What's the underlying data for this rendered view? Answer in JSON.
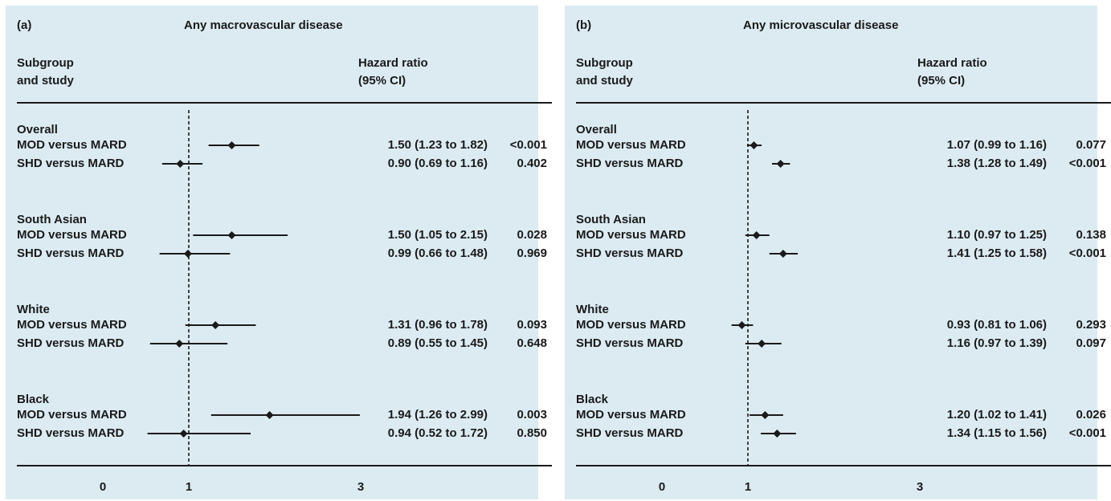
{
  "chart_data": [
    {
      "type": "forest",
      "panel_label": "(a)",
      "title": "Any macrovascular disease",
      "column_headers": {
        "subgroup": [
          "Subgroup",
          "and study"
        ],
        "hazard_ratio": [
          "Hazard ratio",
          "(95% CI)"
        ]
      },
      "x_ticks": [
        "0",
        "1",
        "3"
      ],
      "reference_line": 1,
      "groups": [
        {
          "name": "Overall",
          "rows": [
            {
              "label": "MOD versus MARD",
              "hr": 1.5,
              "lo": 1.23,
              "hi": 1.82,
              "ci_text": "1.50 (1.23 to 1.82)",
              "p": "<0.001"
            },
            {
              "label": "SHD versus MARD",
              "hr": 0.9,
              "lo": 0.69,
              "hi": 1.16,
              "ci_text": "0.90 (0.69 to 1.16)",
              "p": "0.402"
            }
          ]
        },
        {
          "name": "South Asian",
          "rows": [
            {
              "label": "MOD versus MARD",
              "hr": 1.5,
              "lo": 1.05,
              "hi": 2.15,
              "ci_text": "1.50 (1.05 to 2.15)",
              "p": "0.028"
            },
            {
              "label": "SHD versus MARD",
              "hr": 0.99,
              "lo": 0.66,
              "hi": 1.48,
              "ci_text": "0.99 (0.66 to 1.48)",
              "p": "0.969"
            }
          ]
        },
        {
          "name": "White",
          "rows": [
            {
              "label": "MOD versus MARD",
              "hr": 1.31,
              "lo": 0.96,
              "hi": 1.78,
              "ci_text": "1.31 (0.96 to 1.78)",
              "p": "0.093"
            },
            {
              "label": "SHD versus MARD",
              "hr": 0.89,
              "lo": 0.55,
              "hi": 1.45,
              "ci_text": "0.89 (0.55 to 1.45)",
              "p": "0.648"
            }
          ]
        },
        {
          "name": "Black",
          "rows": [
            {
              "label": "MOD versus MARD",
              "hr": 1.94,
              "lo": 1.26,
              "hi": 2.99,
              "ci_text": "1.94 (1.26 to 2.99)",
              "p": "0.003"
            },
            {
              "label": "SHD versus MARD",
              "hr": 0.94,
              "lo": 0.52,
              "hi": 1.72,
              "ci_text": "0.94 (0.52 to 1.72)",
              "p": "0.850"
            }
          ]
        }
      ]
    },
    {
      "type": "forest",
      "panel_label": "(b)",
      "title": "Any microvascular disease",
      "column_headers": {
        "subgroup": [
          "Subgroup",
          "and study"
        ],
        "hazard_ratio": [
          "Hazard ratio",
          "(95% CI)"
        ]
      },
      "x_ticks": [
        "0",
        "1",
        "3"
      ],
      "reference_line": 1,
      "groups": [
        {
          "name": "Overall",
          "rows": [
            {
              "label": "MOD versus MARD",
              "hr": 1.07,
              "lo": 0.99,
              "hi": 1.16,
              "ci_text": "1.07 (0.99 to 1.16)",
              "p": "0.077"
            },
            {
              "label": "SHD versus MARD",
              "hr": 1.38,
              "lo": 1.28,
              "hi": 1.49,
              "ci_text": "1.38 (1.28 to 1.49)",
              "p": "<0.001"
            }
          ]
        },
        {
          "name": "South Asian",
          "rows": [
            {
              "label": "MOD versus MARD",
              "hr": 1.1,
              "lo": 0.97,
              "hi": 1.25,
              "ci_text": "1.10 (0.97 to 1.25)",
              "p": "0.138"
            },
            {
              "label": "SHD versus MARD",
              "hr": 1.41,
              "lo": 1.25,
              "hi": 1.58,
              "ci_text": "1.41 (1.25 to 1.58)",
              "p": "<0.001"
            }
          ]
        },
        {
          "name": "White",
          "rows": [
            {
              "label": "MOD versus MARD",
              "hr": 0.93,
              "lo": 0.81,
              "hi": 1.06,
              "ci_text": "0.93 (0.81 to 1.06)",
              "p": "0.293"
            },
            {
              "label": "SHD versus MARD",
              "hr": 1.16,
              "lo": 0.97,
              "hi": 1.39,
              "ci_text": "1.16 (0.97 to 1.39)",
              "p": "0.097"
            }
          ]
        },
        {
          "name": "Black",
          "rows": [
            {
              "label": "MOD versus MARD",
              "hr": 1.2,
              "lo": 1.02,
              "hi": 1.41,
              "ci_text": "1.20 (1.02 to 1.41)",
              "p": "0.026"
            },
            {
              "label": "SHD versus MARD",
              "hr": 1.34,
              "lo": 1.15,
              "hi": 1.56,
              "ci_text": "1.34 (1.15 to 1.56)",
              "p": "<0.001"
            }
          ]
        }
      ]
    }
  ]
}
